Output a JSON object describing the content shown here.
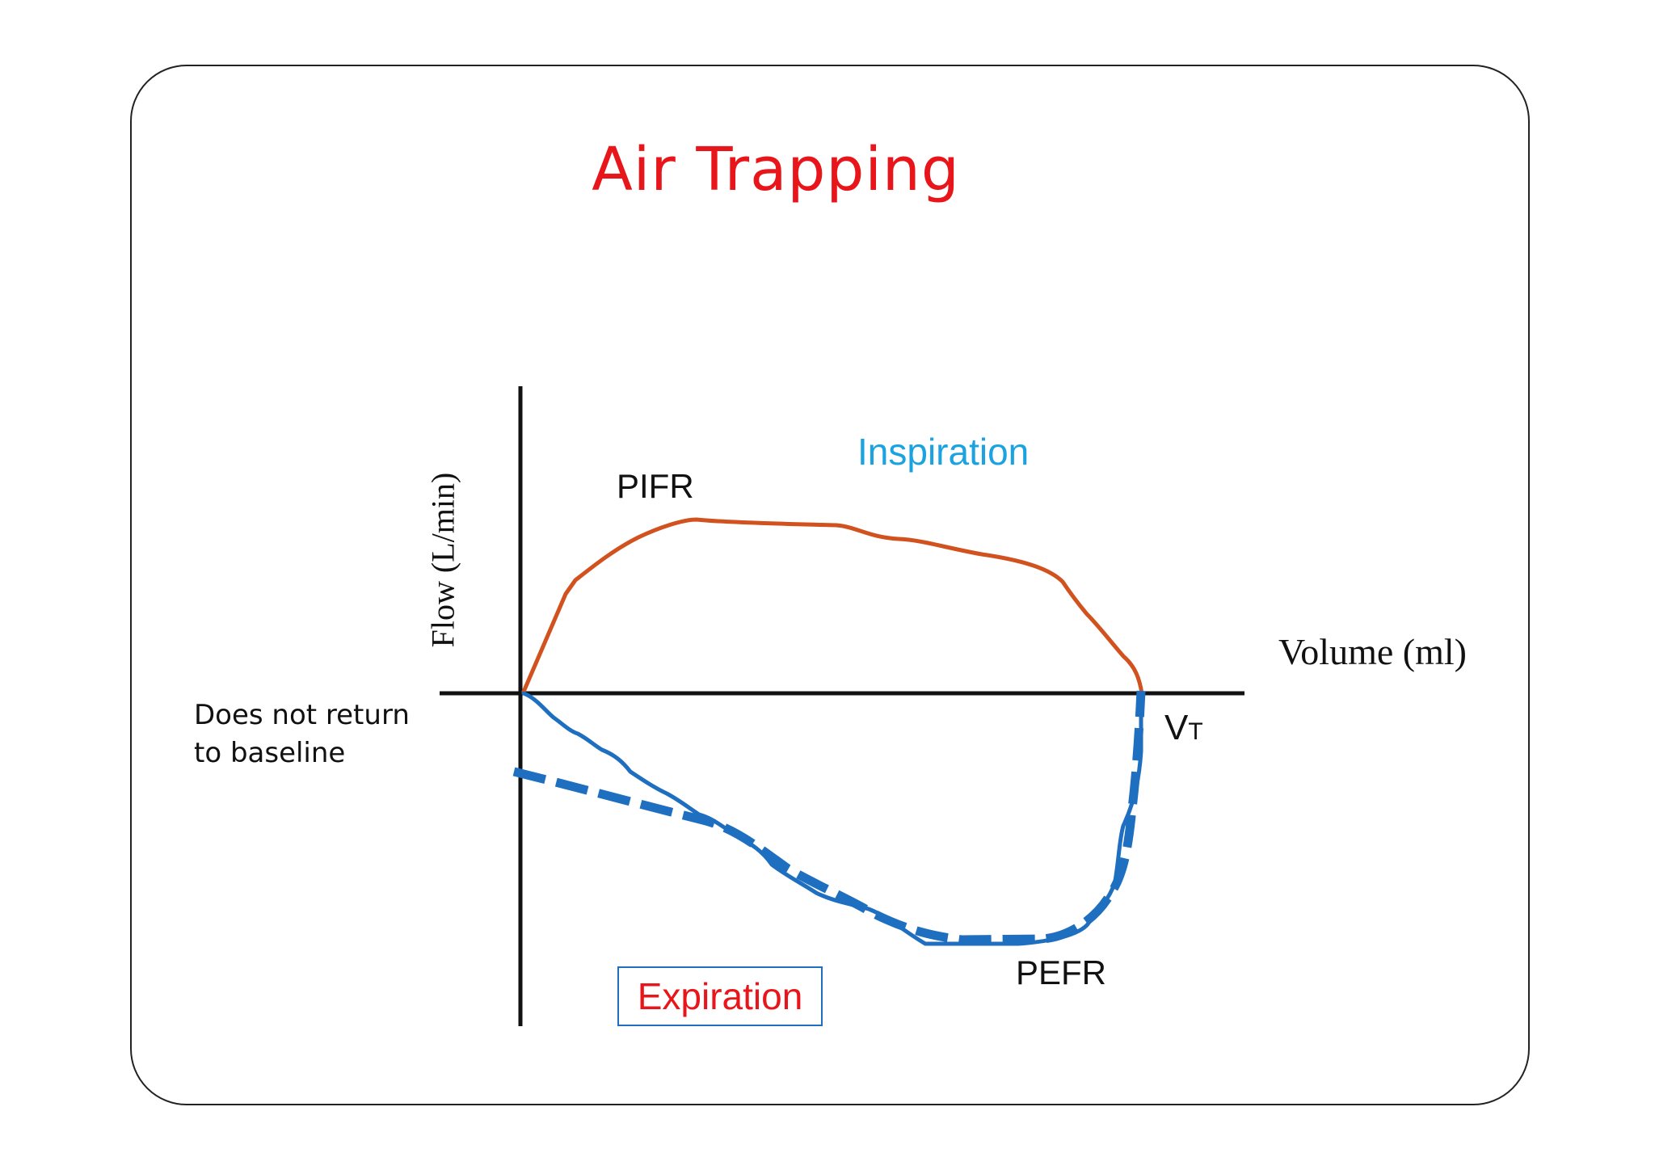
{
  "title": "Air Trapping",
  "labels": {
    "inspiration": "Inspiration",
    "pifr": "PIFR",
    "pefr": "PEFR",
    "vt_main": "V",
    "vt_sub": "T",
    "x_axis": "Volume (ml)",
    "y_axis": "Flow (L/min)",
    "note_line1": "Does not return",
    "note_line2": "to baseline",
    "expiration": "Expiration"
  },
  "colors": {
    "title": "#e8151b",
    "inspiration_curve": "#d2521f",
    "inspiration_label": "#1aa3e0",
    "expiration_curve": "#1f6fc1",
    "expiration_label": "#e8151b",
    "axes": "#111111"
  }
}
